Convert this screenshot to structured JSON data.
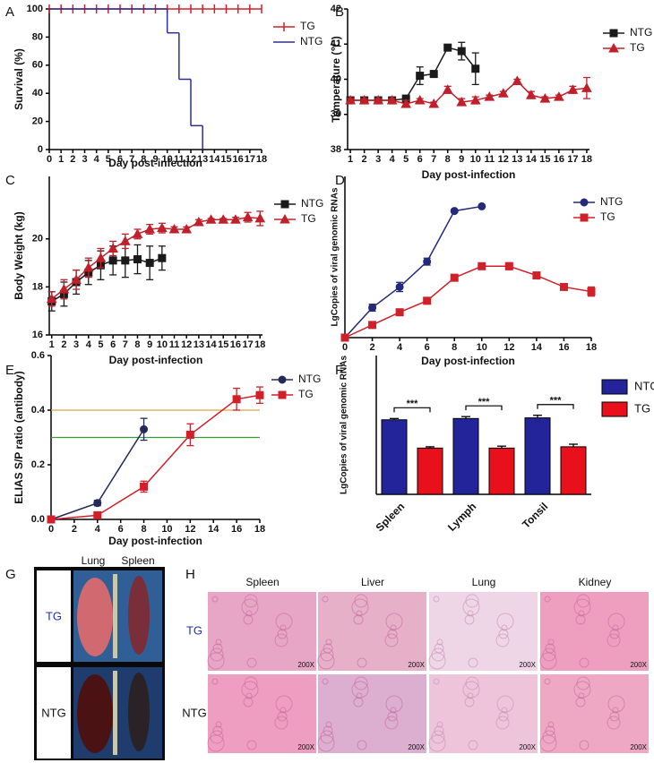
{
  "chart_data": [
    {
      "type": "line",
      "panel": "A",
      "step": true,
      "xlabel": "Day post-infection",
      "ylabel": "Survival (%)",
      "xlim": [
        0,
        18
      ],
      "xticks": [
        0,
        1,
        2,
        3,
        4,
        5,
        6,
        7,
        8,
        9,
        10,
        11,
        12,
        13,
        14,
        15,
        16,
        17,
        18
      ],
      "ylim": [
        0,
        100
      ],
      "yticks": [
        0,
        20,
        40,
        60,
        80,
        100
      ],
      "series": [
        {
          "name": "TG",
          "color": "#d0202a",
          "marker": "tick",
          "x": [
            0,
            1,
            2,
            3,
            4,
            5,
            6,
            7,
            8,
            9,
            10,
            11,
            12,
            13,
            14,
            15,
            16,
            17,
            18
          ],
          "values": [
            100,
            100,
            100,
            100,
            100,
            100,
            100,
            100,
            100,
            100,
            100,
            100,
            100,
            100,
            100,
            100,
            100,
            100,
            100
          ]
        },
        {
          "name": "NTG",
          "color": "#2b2f8f",
          "marker": "none",
          "x": [
            0,
            10,
            11,
            12,
            13
          ],
          "values": [
            100,
            83,
            50,
            17,
            0
          ]
        }
      ]
    },
    {
      "type": "line",
      "panel": "B",
      "xlabel": "Day post-infection",
      "ylabel": "Temperature (℃)",
      "xlim": [
        0.8,
        18.2
      ],
      "xticks": [
        1,
        2,
        3,
        4,
        5,
        6,
        7,
        8,
        9,
        10,
        11,
        12,
        13,
        14,
        15,
        16,
        17,
        18
      ],
      "ylim": [
        38,
        42
      ],
      "yticks": [
        38,
        39,
        40,
        41,
        42
      ],
      "series": [
        {
          "name": "NTG",
          "color": "#1a1a1a",
          "marker": "square",
          "x": [
            1,
            2,
            3,
            4,
            5,
            6,
            7,
            8,
            9,
            10
          ],
          "values": [
            39.4,
            39.4,
            39.4,
            39.4,
            39.45,
            40.1,
            40.15,
            40.9,
            40.8,
            40.3
          ],
          "errors": [
            0.05,
            0.05,
            0.05,
            0.05,
            0.05,
            0.25,
            0.05,
            0.05,
            0.25,
            0.45
          ]
        },
        {
          "name": "TG",
          "color": "#c0202a",
          "marker": "triangle",
          "x": [
            1,
            2,
            3,
            4,
            5,
            6,
            7,
            8,
            9,
            10,
            11,
            12,
            13,
            14,
            15,
            16,
            17,
            18
          ],
          "values": [
            39.4,
            39.4,
            39.4,
            39.4,
            39.3,
            39.4,
            39.3,
            39.7,
            39.35,
            39.4,
            39.5,
            39.6,
            39.95,
            39.55,
            39.45,
            39.5,
            39.7,
            39.75
          ],
          "errors": [
            0.05,
            0.05,
            0.05,
            0.05,
            0.1,
            0.05,
            0.05,
            0.1,
            0.1,
            0.1,
            0.05,
            0.05,
            0.05,
            0.1,
            0.05,
            0.05,
            0.1,
            0.3
          ]
        }
      ]
    },
    {
      "type": "line",
      "panel": "C",
      "xlabel": "Day post-infection",
      "ylabel": "Body Weight (kg)",
      "xlim": [
        0.8,
        18.2
      ],
      "xticks": [
        1,
        2,
        3,
        4,
        5,
        6,
        7,
        8,
        9,
        10,
        11,
        12,
        13,
        14,
        15,
        16,
        17,
        18
      ],
      "ylim": [
        16,
        22.6
      ],
      "yticks": [
        16,
        18,
        20
      ],
      "series": [
        {
          "name": "NTG",
          "color": "#1a1a1a",
          "marker": "square",
          "x": [
            1,
            2,
            3,
            4,
            5,
            6,
            7,
            8,
            9,
            10
          ],
          "values": [
            17.4,
            17.7,
            18.2,
            18.6,
            18.9,
            19.1,
            19.1,
            19.15,
            19.0,
            19.2
          ],
          "errors": [
            0.4,
            0.5,
            0.5,
            0.5,
            0.6,
            0.6,
            0.7,
            0.6,
            0.7,
            0.5
          ]
        },
        {
          "name": "TG",
          "color": "#c0202a",
          "marker": "triangle",
          "x": [
            1,
            2,
            3,
            4,
            5,
            6,
            7,
            8,
            9,
            10,
            11,
            12,
            13,
            14,
            15,
            16,
            17,
            18
          ],
          "values": [
            17.5,
            17.9,
            18.3,
            18.8,
            19.2,
            19.6,
            19.9,
            20.2,
            20.4,
            20.45,
            20.4,
            20.4,
            20.7,
            20.8,
            20.8,
            20.8,
            20.9,
            20.85
          ],
          "errors": [
            0.3,
            0.4,
            0.4,
            0.4,
            0.4,
            0.3,
            0.3,
            0.2,
            0.2,
            0.2,
            0.1,
            0.1,
            0.1,
            0.05,
            0.05,
            0.1,
            0.2,
            0.3
          ]
        }
      ]
    },
    {
      "type": "line",
      "panel": "D",
      "xlabel": "Day post-infection",
      "ylabel": "LgCopies of viral genomic RNAs",
      "xlim": [
        0,
        18
      ],
      "xticks": [
        0,
        2,
        4,
        6,
        8,
        10,
        12,
        14,
        16,
        18
      ],
      "ylim": [
        0,
        7
      ],
      "series": [
        {
          "name": "NTG",
          "color": "#232a7a",
          "marker": "circle",
          "x": [
            0,
            2,
            4,
            6,
            8,
            10
          ],
          "values": [
            0,
            1.3,
            2.2,
            3.3,
            5.5,
            5.7
          ],
          "errors": [
            0,
            0.15,
            0.2,
            0.15,
            0.05,
            0.05
          ]
        },
        {
          "name": "TG",
          "color": "#d0202a",
          "marker": "square",
          "x": [
            0,
            2,
            4,
            6,
            8,
            10,
            12,
            14,
            16,
            18
          ],
          "values": [
            0,
            0.55,
            1.1,
            1.6,
            2.6,
            3.1,
            3.1,
            2.7,
            2.2,
            2.0
          ],
          "errors": [
            0,
            0.05,
            0.1,
            0.1,
            0.1,
            0.05,
            0.15,
            0.05,
            0.05,
            0.2
          ]
        }
      ]
    },
    {
      "type": "line",
      "panel": "E",
      "xlabel": "Day post-infection",
      "ylabel": "ELIAS S/P ratio (antibody)",
      "xlim": [
        0,
        18
      ],
      "xticks": [
        0,
        2,
        4,
        6,
        8,
        10,
        12,
        14,
        16,
        18
      ],
      "ylim": [
        0,
        0.6
      ],
      "yticks": [
        {
          "value": 0,
          "label": "0.0"
        },
        0.2,
        0.4,
        0.6
      ],
      "reference_lines": [
        {
          "value": 0.4,
          "color": "#e8a040"
        },
        {
          "value": 0.3,
          "color": "#3c9a3c"
        }
      ],
      "series": [
        {
          "name": "NTG",
          "color": "#232a5a",
          "marker": "circle",
          "x": [
            0,
            4,
            8
          ],
          "values": [
            0,
            0.06,
            0.33
          ],
          "errors": [
            0,
            0.01,
            0.04
          ]
        },
        {
          "name": "TG",
          "color": "#d0202a",
          "marker": "square",
          "x": [
            0,
            4,
            8,
            12,
            16,
            18
          ],
          "values": [
            0,
            0.015,
            0.12,
            0.31,
            0.44,
            0.455
          ],
          "errors": [
            0,
            0.005,
            0.02,
            0.04,
            0.04,
            0.03
          ]
        }
      ]
    },
    {
      "type": "bar",
      "panel": "F",
      "ylabel": "LgCopies of viral genomic RNAs",
      "ylim": [
        0,
        10.8
      ],
      "categories": [
        "Spleen",
        "Lymph",
        "Tonsil"
      ],
      "significance": [
        "***",
        "***",
        "***"
      ],
      "series": [
        {
          "name": "NTG",
          "color": "#23239a",
          "values": [
            5.8,
            5.9,
            5.95
          ],
          "errors": [
            0.1,
            0.15,
            0.2
          ]
        },
        {
          "name": "TG",
          "color": "#e8101a",
          "values": [
            3.6,
            3.6,
            3.7
          ],
          "errors": [
            0.1,
            0.15,
            0.2
          ]
        }
      ]
    }
  ],
  "photos": {
    "panel": "G",
    "columns": [
      "Lung",
      "Spleen"
    ],
    "rows": [
      "TG",
      "NTG"
    ]
  },
  "histology": {
    "panel": "H",
    "columns": [
      "Spleen",
      "Liver",
      "Lung",
      "Kidney"
    ],
    "rows": [
      "TG",
      "NTG"
    ],
    "magnification": [
      [
        "200X",
        "200X",
        "200X",
        "200X"
      ],
      [
        "200X",
        "200X",
        "200X",
        "200X"
      ]
    ]
  }
}
